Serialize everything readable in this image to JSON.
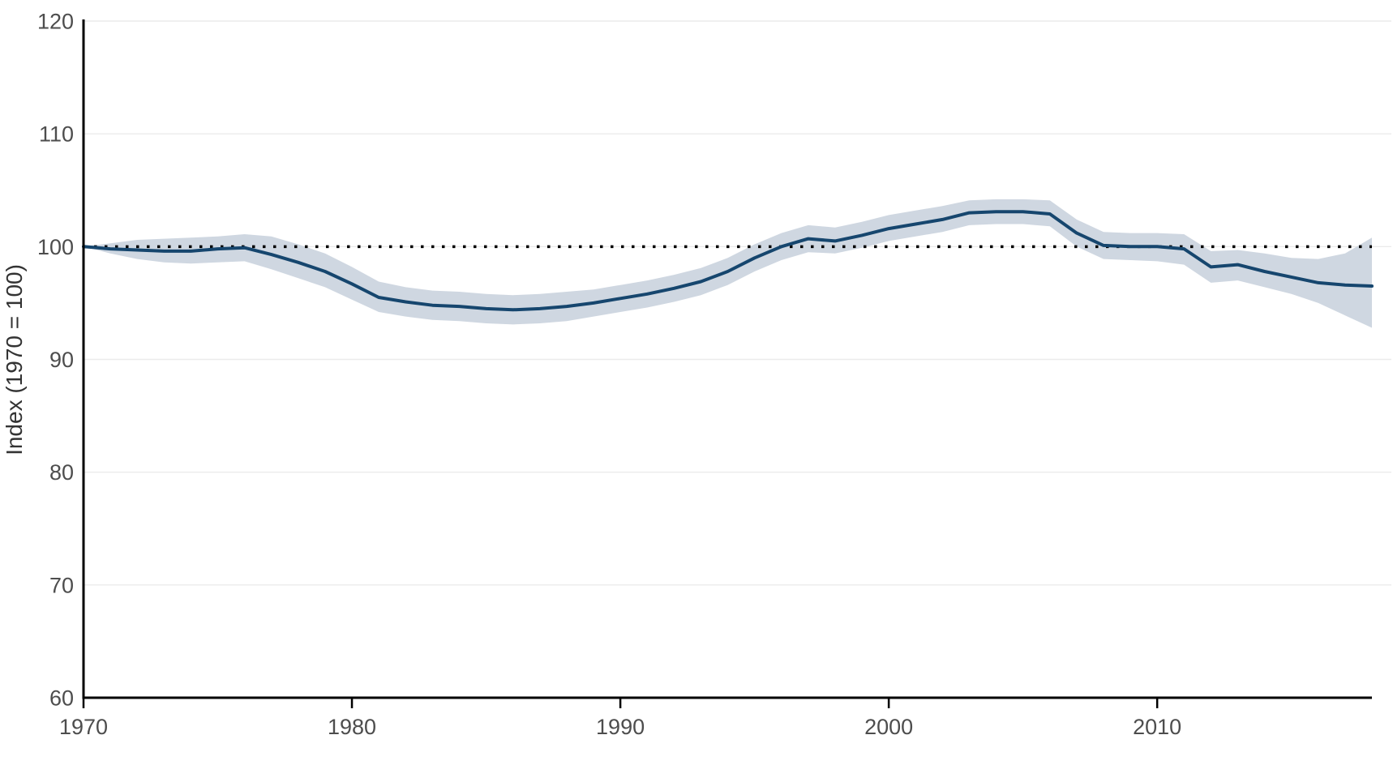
{
  "colors": {
    "background": "#ffffff",
    "line": "#16466e",
    "band": "#cfd7e1",
    "grid": "#ebebeb",
    "axis": "#000000",
    "tick_label": "#4d4d4d",
    "axis_title": "#333333",
    "reference_dotted": "#000000"
  },
  "chart_data": {
    "type": "line",
    "title": "",
    "xlabel": "",
    "ylabel": "Index (1970 = 100)",
    "xlim": [
      1970,
      2018
    ],
    "ylim": [
      60,
      120
    ],
    "xticks": [
      1970,
      1980,
      1990,
      2000,
      2010
    ],
    "yticks": [
      60,
      70,
      80,
      90,
      100,
      110,
      120
    ],
    "grid": "horizontal",
    "legend": "none",
    "reference_line_y": 100,
    "x": [
      1970,
      1971,
      1972,
      1973,
      1974,
      1975,
      1976,
      1977,
      1978,
      1979,
      1980,
      1981,
      1982,
      1983,
      1984,
      1985,
      1986,
      1987,
      1988,
      1989,
      1990,
      1991,
      1992,
      1993,
      1994,
      1995,
      1996,
      1997,
      1998,
      1999,
      2000,
      2001,
      2002,
      2003,
      2004,
      2005,
      2006,
      2007,
      2008,
      2009,
      2010,
      2011,
      2012,
      2013,
      2014,
      2015,
      2016,
      2017,
      2018
    ],
    "series": [
      {
        "name": "index",
        "role": "main-line",
        "values": [
          100.0,
          99.8,
          99.7,
          99.6,
          99.6,
          99.8,
          99.9,
          99.3,
          98.6,
          97.8,
          96.7,
          95.5,
          95.1,
          94.8,
          94.7,
          94.5,
          94.4,
          94.5,
          94.7,
          95.0,
          95.4,
          95.8,
          96.3,
          96.9,
          97.8,
          99.0,
          100.0,
          100.7,
          100.5,
          101.0,
          101.6,
          102.0,
          102.4,
          103.0,
          103.1,
          103.1,
          102.9,
          101.2,
          100.1,
          100.0,
          100.0,
          99.8,
          98.2,
          98.4,
          97.8,
          97.3,
          96.8,
          96.6,
          96.5
        ]
      },
      {
        "name": "lower",
        "role": "band-lower",
        "values": [
          100.0,
          99.4,
          98.9,
          98.6,
          98.5,
          98.6,
          98.7,
          98.0,
          97.2,
          96.4,
          95.3,
          94.2,
          93.8,
          93.5,
          93.4,
          93.2,
          93.1,
          93.2,
          93.4,
          93.8,
          94.2,
          94.6,
          95.1,
          95.7,
          96.6,
          97.8,
          98.8,
          99.5,
          99.4,
          99.9,
          100.5,
          100.9,
          101.3,
          101.9,
          102.0,
          102.0,
          101.8,
          100.0,
          98.9,
          98.8,
          98.7,
          98.4,
          96.8,
          97.0,
          96.4,
          95.8,
          95.0,
          93.9,
          92.8
        ]
      },
      {
        "name": "upper",
        "role": "band-upper",
        "values": [
          100.0,
          100.3,
          100.6,
          100.7,
          100.8,
          100.9,
          101.1,
          100.9,
          100.2,
          99.4,
          98.2,
          96.9,
          96.4,
          96.1,
          96.0,
          95.8,
          95.7,
          95.8,
          96.0,
          96.2,
          96.6,
          97.0,
          97.5,
          98.1,
          99.0,
          100.2,
          101.2,
          101.9,
          101.7,
          102.2,
          102.8,
          103.2,
          103.6,
          104.1,
          104.2,
          104.2,
          104.1,
          102.4,
          101.3,
          101.2,
          101.2,
          101.1,
          99.6,
          99.7,
          99.4,
          99.0,
          98.9,
          99.4,
          100.8
        ]
      }
    ]
  }
}
